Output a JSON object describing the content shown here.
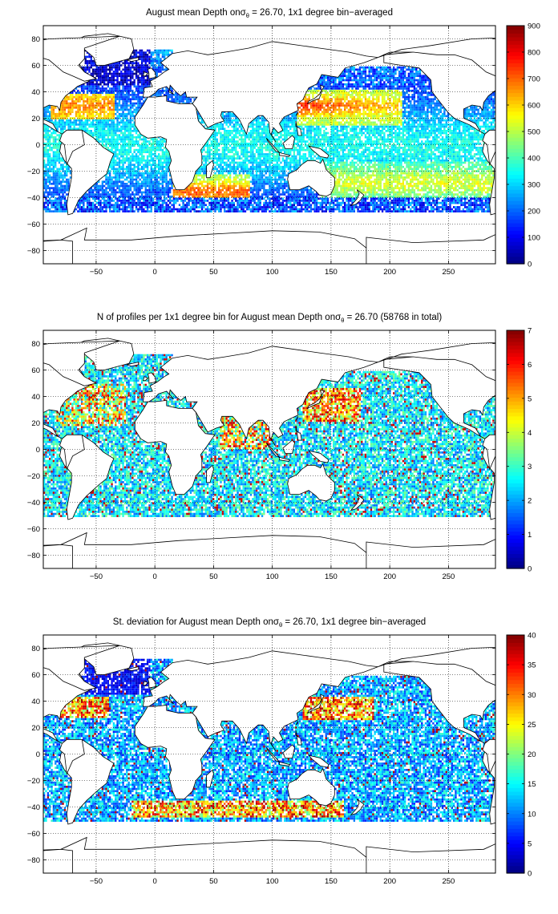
{
  "chart_data": [
    {
      "type": "heatmap",
      "title_prefix": "August mean Depth on",
      "title_symbol": "σ",
      "title_symbol_sub": "θ",
      "title_suffix": " = 26.70, 1x1 degree bin−averaged",
      "xlim": [
        -95,
        290
      ],
      "ylim": [
        -90,
        90
      ],
      "xticks": [
        -50,
        0,
        50,
        100,
        150,
        200,
        250
      ],
      "xtick_labels": [
        "−50",
        "0",
        "50",
        "100",
        "150",
        "200",
        "250"
      ],
      "yticks": [
        80,
        60,
        40,
        20,
        0,
        -20,
        -40,
        -60,
        -80
      ],
      "ytick_labels": [
        "80",
        "60",
        "40",
        "20",
        "0",
        "−20",
        "−40",
        "−60",
        "−80"
      ],
      "grid": true,
      "grid_style": "dotted",
      "colorbar": {
        "min": 0,
        "max": 900,
        "ticks": [
          900,
          800,
          700,
          600,
          500,
          400,
          300,
          200,
          100,
          0
        ],
        "colormap": "jet"
      },
      "field_features": [
        {
          "region": "North Atlantic subpolar",
          "lon": [
            -60,
            -10
          ],
          "lat": [
            45,
            70
          ],
          "value": 40
        },
        {
          "region": "Subtropical North Atlantic",
          "lon": [
            -85,
            -35
          ],
          "lat": [
            22,
            40
          ],
          "value": 620
        },
        {
          "region": "Northwest Pacific (Kuroshio)",
          "lon": [
            120,
            200
          ],
          "lat": [
            20,
            40
          ],
          "value": 700
        },
        {
          "region": "Agulhas / South Indian",
          "lon": [
            20,
            80
          ],
          "lat": [
            -45,
            -25
          ],
          "value": 650
        },
        {
          "region": "South Pacific subtropical",
          "lon": [
            150,
            260
          ],
          "lat": [
            -40,
            -15
          ],
          "value": 500
        },
        {
          "region": "Tropics",
          "lon": [
            -95,
            290
          ],
          "lat": [
            -15,
            15
          ],
          "value": 300
        },
        {
          "region": "Southern rim",
          "lon": [
            -95,
            290
          ],
          "lat": [
            -50,
            -40
          ],
          "value": 160
        }
      ]
    },
    {
      "type": "heatmap",
      "title_prefix": "N of profiles per 1x1 degree bin for August mean Depth on",
      "title_symbol": "σ",
      "title_symbol_sub": "θ",
      "title_suffix": " = 26.70 (58768 in total)",
      "total_profiles": 58768,
      "xlim": [
        -95,
        290
      ],
      "ylim": [
        -90,
        90
      ],
      "xticks": [
        -50,
        0,
        50,
        100,
        150,
        200,
        250
      ],
      "xtick_labels": [
        "−50",
        "0",
        "50",
        "100",
        "150",
        "200",
        "250"
      ],
      "yticks": [
        80,
        60,
        40,
        20,
        0,
        -20,
        -40,
        -60,
        -80
      ],
      "ytick_labels": [
        "80",
        "60",
        "40",
        "20",
        "0",
        "−20",
        "−40",
        "−60",
        "−80"
      ],
      "grid": true,
      "grid_style": "dotted",
      "colorbar": {
        "min": 0,
        "max": 7,
        "ticks": [
          7,
          6,
          5,
          4,
          3,
          2,
          1,
          0
        ],
        "colormap": "jet"
      },
      "field_features": [
        {
          "region": "Northwest Pacific",
          "lon": [
            125,
            175
          ],
          "lat": [
            25,
            45
          ],
          "value": 6
        },
        {
          "region": "Subtropical North Atlantic",
          "lon": [
            -80,
            -30
          ],
          "lat": [
            20,
            45
          ],
          "value": 4
        },
        {
          "region": "Bay of Bengal / Arabian Sea",
          "lon": [
            55,
            95
          ],
          "lat": [
            5,
            25
          ],
          "value": 5
        },
        {
          "region": "Open ocean",
          "lon": [
            -95,
            290
          ],
          "lat": [
            -50,
            60
          ],
          "value": 2
        }
      ]
    },
    {
      "type": "heatmap",
      "title_prefix": "St. deviation for August mean Depth on",
      "title_symbol": "σ",
      "title_symbol_sub": "θ",
      "title_suffix": " = 26.70, 1x1 degree bin−averaged",
      "xlim": [
        -95,
        290
      ],
      "ylim": [
        -90,
        90
      ],
      "xticks": [
        -50,
        0,
        50,
        100,
        150,
        200,
        250
      ],
      "xtick_labels": [
        "−50",
        "0",
        "50",
        "100",
        "150",
        "200",
        "250"
      ],
      "yticks": [
        80,
        60,
        40,
        20,
        0,
        -20,
        -40,
        -60,
        -80
      ],
      "ytick_labels": [
        "80",
        "60",
        "40",
        "20",
        "0",
        "−20",
        "−40",
        "−60",
        "−80"
      ],
      "grid": true,
      "grid_style": "dotted",
      "colorbar": {
        "min": 0,
        "max": 40,
        "ticks": [
          40,
          35,
          30,
          25,
          20,
          15,
          10,
          5,
          0
        ],
        "colormap": "jet"
      },
      "field_features": [
        {
          "region": "Kuroshio extension",
          "lon": [
            130,
            180
          ],
          "lat": [
            28,
            42
          ],
          "value": 36
        },
        {
          "region": "Gulf Stream",
          "lon": [
            -80,
            -40
          ],
          "lat": [
            30,
            42
          ],
          "value": 34
        },
        {
          "region": "Southern front",
          "lon": [
            -20,
            160
          ],
          "lat": [
            -48,
            -36
          ],
          "value": 35
        },
        {
          "region": "Subpolar North Atlantic",
          "lon": [
            -60,
            -10
          ],
          "lat": [
            45,
            70
          ],
          "value": 4
        },
        {
          "region": "Open ocean",
          "lon": [
            -95,
            290
          ],
          "lat": [
            -40,
            30
          ],
          "value": 12
        }
      ]
    }
  ]
}
